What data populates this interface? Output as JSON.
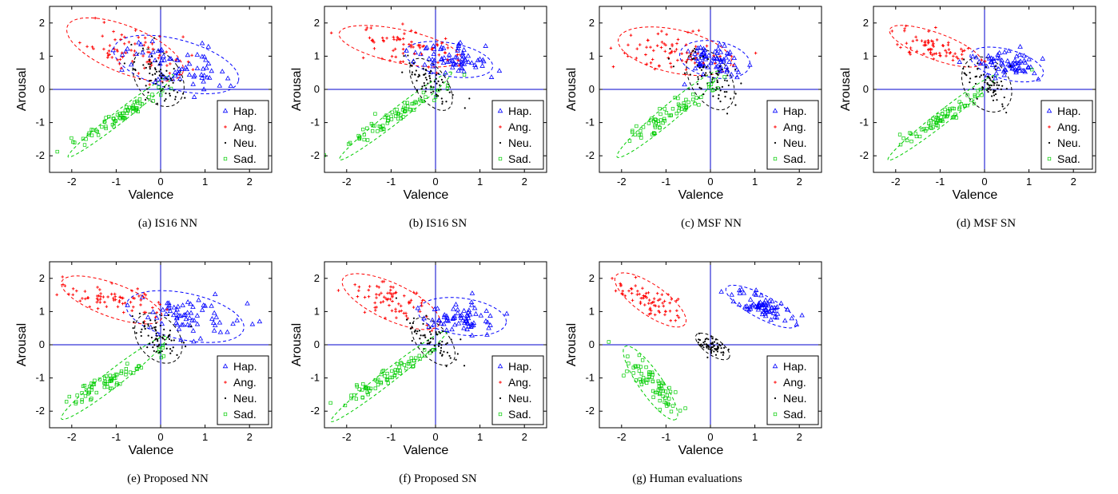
{
  "figure": {
    "colors": {
      "hap": "#0000ff",
      "ang": "#ff0000",
      "neu": "#000000",
      "sad": "#00cc00",
      "axis": "#0000cc"
    }
  },
  "chart_data": [
    {
      "type": "scatter",
      "caption": "(a)  IS16 NN",
      "xlabel": "Valence",
      "ylabel": "Arousal",
      "xlim": [
        -2.5,
        2.5
      ],
      "ylim": [
        -2.5,
        2.5
      ],
      "xticks": [
        "-2",
        "-1",
        "0",
        "1",
        "2"
      ],
      "yticks": [
        "-2",
        "-1",
        "0",
        "1",
        "2"
      ],
      "grid": false,
      "legend_position": "bottom-right",
      "series": [
        {
          "name": "Hap.",
          "marker": "triangle",
          "color": "#0000ff",
          "center": [
            0.3,
            0.85
          ],
          "spread": [
            0.55,
            0.45
          ],
          "ellipse": {
            "cx": 0.35,
            "cy": 0.75,
            "rx": 1.45,
            "ry": 0.75,
            "angle": -15
          }
        },
        {
          "name": "Ang.",
          "marker": "plus",
          "color": "#ff0000",
          "center": [
            -0.8,
            1.3
          ],
          "spread": [
            0.6,
            0.4
          ],
          "ellipse": {
            "cx": -0.8,
            "cy": 1.2,
            "rx": 1.4,
            "ry": 0.7,
            "angle": -22
          }
        },
        {
          "name": "Neu.",
          "marker": "dot",
          "color": "#000000",
          "center": [
            0.0,
            0.15
          ],
          "spread": [
            0.25,
            0.35
          ],
          "ellipse": {
            "cx": -0.05,
            "cy": 0.35,
            "rx": 0.5,
            "ry": 0.95,
            "angle": 35
          }
        },
        {
          "name": "Sad.",
          "marker": "square",
          "color": "#00cc00",
          "center": [
            -1.0,
            -0.9
          ],
          "spread": [
            0.5,
            0.45
          ],
          "ellipse": {
            "cx": -0.9,
            "cy": -0.8,
            "rx": 1.5,
            "ry": 0.18,
            "angle": 38
          }
        }
      ]
    },
    {
      "type": "scatter",
      "caption": "(b)  IS16 SN",
      "xlabel": "Valence",
      "ylabel": "Arousal",
      "xlim": [
        -2.5,
        2.5
      ],
      "ylim": [
        -2.5,
        2.5
      ],
      "xticks": [
        "-2",
        "-1",
        "0",
        "1",
        "2"
      ],
      "yticks": [
        "-2",
        "-1",
        "0",
        "1",
        "2"
      ],
      "grid": false,
      "legend_position": "bottom-right",
      "series": [
        {
          "name": "Hap.",
          "marker": "triangle",
          "color": "#0000ff",
          "center": [
            0.35,
            0.95
          ],
          "spread": [
            0.4,
            0.3
          ],
          "ellipse": {
            "cx": 0.3,
            "cy": 0.9,
            "rx": 1.0,
            "ry": 0.5,
            "angle": -10
          }
        },
        {
          "name": "Ang.",
          "marker": "plus",
          "color": "#ff0000",
          "center": [
            -0.8,
            1.3
          ],
          "spread": [
            0.6,
            0.25
          ],
          "ellipse": {
            "cx": -0.8,
            "cy": 1.3,
            "rx": 1.4,
            "ry": 0.5,
            "angle": -12
          }
        },
        {
          "name": "Neu.",
          "marker": "dot",
          "color": "#000000",
          "center": [
            -0.15,
            0.0
          ],
          "spread": [
            0.2,
            0.3
          ],
          "ellipse": {
            "cx": -0.1,
            "cy": 0.15,
            "rx": 0.35,
            "ry": 0.9,
            "angle": 35
          }
        },
        {
          "name": "Sad.",
          "marker": "square",
          "color": "#00cc00",
          "center": [
            -0.9,
            -0.8
          ],
          "spread": [
            0.55,
            0.45
          ],
          "ellipse": {
            "cx": -0.9,
            "cy": -0.8,
            "rx": 1.6,
            "ry": 0.2,
            "angle": 38
          }
        }
      ]
    },
    {
      "type": "scatter",
      "caption": "(c)  MSF NN",
      "xlabel": "Valence",
      "ylabel": "Arousal",
      "xlim": [
        -2.5,
        2.5
      ],
      "ylim": [
        -2.5,
        2.5
      ],
      "xticks": [
        "-2",
        "-1",
        "0",
        "1",
        "2"
      ],
      "yticks": [
        "-2",
        "-1",
        "0",
        "1",
        "2"
      ],
      "grid": false,
      "legend_position": "bottom-right",
      "series": [
        {
          "name": "Hap.",
          "marker": "triangle",
          "color": "#0000ff",
          "center": [
            0.1,
            1.0
          ],
          "spread": [
            0.3,
            0.3
          ],
          "ellipse": {
            "cx": 0.1,
            "cy": 0.9,
            "rx": 0.8,
            "ry": 0.55,
            "angle": -10
          }
        },
        {
          "name": "Ang.",
          "marker": "plus",
          "color": "#ff0000",
          "center": [
            -0.9,
            1.2
          ],
          "spread": [
            0.6,
            0.3
          ],
          "ellipse": {
            "cx": -0.8,
            "cy": 1.15,
            "rx": 1.3,
            "ry": 0.65,
            "angle": -12
          }
        },
        {
          "name": "Neu.",
          "marker": "dot",
          "color": "#000000",
          "center": [
            0.15,
            0.4
          ],
          "spread": [
            0.3,
            0.35
          ],
          "ellipse": {
            "cx": 0.0,
            "cy": 0.3,
            "rx": 0.45,
            "ry": 1.0,
            "angle": 30
          }
        },
        {
          "name": "Sad.",
          "marker": "square",
          "color": "#00cc00",
          "center": [
            -1.0,
            -0.8
          ],
          "spread": [
            0.5,
            0.5
          ],
          "ellipse": {
            "cx": -0.95,
            "cy": -0.75,
            "rx": 1.5,
            "ry": 0.25,
            "angle": 40
          }
        }
      ]
    },
    {
      "type": "scatter",
      "caption": "(d)  MSF SN",
      "xlabel": "Valence",
      "ylabel": "Arousal",
      "xlim": [
        -2.5,
        2.5
      ],
      "ylim": [
        -2.5,
        2.5
      ],
      "xticks": [
        "-2",
        "-1",
        "0",
        "1",
        "2"
      ],
      "yticks": [
        "-2",
        "-1",
        "0",
        "1",
        "2"
      ],
      "grid": false,
      "legend_position": "bottom-right",
      "series": [
        {
          "name": "Hap.",
          "marker": "triangle",
          "color": "#0000ff",
          "center": [
            0.5,
            0.8
          ],
          "spread": [
            0.4,
            0.25
          ],
          "ellipse": {
            "cx": 0.5,
            "cy": 0.75,
            "rx": 0.85,
            "ry": 0.45,
            "angle": -15
          }
        },
        {
          "name": "Ang.",
          "marker": "plus",
          "color": "#ff0000",
          "center": [
            -1.2,
            1.35
          ],
          "spread": [
            0.5,
            0.25
          ],
          "ellipse": {
            "cx": -1.1,
            "cy": 1.3,
            "rx": 1.1,
            "ry": 0.4,
            "angle": -20
          }
        },
        {
          "name": "Neu.",
          "marker": "dot",
          "color": "#000000",
          "center": [
            0.0,
            0.2
          ],
          "spread": [
            0.3,
            0.3
          ],
          "ellipse": {
            "cx": 0.05,
            "cy": 0.15,
            "rx": 0.5,
            "ry": 0.9,
            "angle": 35
          }
        },
        {
          "name": "Sad.",
          "marker": "square",
          "color": "#00cc00",
          "center": [
            -1.0,
            -0.9
          ],
          "spread": [
            0.5,
            0.45
          ],
          "ellipse": {
            "cx": -0.95,
            "cy": -0.85,
            "rx": 1.55,
            "ry": 0.2,
            "angle": 38
          }
        }
      ]
    },
    {
      "type": "scatter",
      "caption": "(e)  Proposed NN",
      "xlabel": "Valence",
      "ylabel": "Arousal",
      "xlim": [
        -2.5,
        2.5
      ],
      "ylim": [
        -2.5,
        2.5
      ],
      "xticks": [
        "-2",
        "-1",
        "0",
        "1",
        "2"
      ],
      "yticks": [
        "-2",
        "-1",
        "0",
        "1",
        "2"
      ],
      "grid": false,
      "legend_position": "bottom-right",
      "series": [
        {
          "name": "Hap.",
          "marker": "triangle",
          "color": "#0000ff",
          "center": [
            0.6,
            1.0
          ],
          "spread": [
            0.6,
            0.35
          ],
          "ellipse": {
            "cx": 0.55,
            "cy": 0.85,
            "rx": 1.35,
            "ry": 0.7,
            "angle": -12
          }
        },
        {
          "name": "Ang.",
          "marker": "plus",
          "color": "#ff0000",
          "center": [
            -1.1,
            1.4
          ],
          "spread": [
            0.5,
            0.35
          ],
          "ellipse": {
            "cx": -1.1,
            "cy": 1.35,
            "rx": 1.2,
            "ry": 0.5,
            "angle": -20
          }
        },
        {
          "name": "Neu.",
          "marker": "dot",
          "color": "#000000",
          "center": [
            0.0,
            0.2
          ],
          "spread": [
            0.25,
            0.35
          ],
          "ellipse": {
            "cx": -0.05,
            "cy": 0.2,
            "rx": 0.45,
            "ry": 0.85,
            "angle": 40
          }
        },
        {
          "name": "Sad.",
          "marker": "square",
          "color": "#00cc00",
          "center": [
            -1.1,
            -1.0
          ],
          "spread": [
            0.45,
            0.4
          ],
          "ellipse": {
            "cx": -1.05,
            "cy": -1.0,
            "rx": 1.5,
            "ry": 0.25,
            "angle": 38
          }
        }
      ]
    },
    {
      "type": "scatter",
      "caption": "(f)  Proposed SN",
      "xlabel": "Valence",
      "ylabel": "Arousal",
      "xlim": [
        -2.5,
        2.5
      ],
      "ylim": [
        -2.5,
        2.5
      ],
      "xticks": [
        "-2",
        "-1",
        "0",
        "1",
        "2"
      ],
      "yticks": [
        "-2",
        "-1",
        "0",
        "1",
        "2"
      ],
      "grid": false,
      "legend_position": "bottom-right",
      "series": [
        {
          "name": "Hap.",
          "marker": "triangle",
          "color": "#0000ff",
          "center": [
            0.6,
            0.9
          ],
          "spread": [
            0.5,
            0.3
          ],
          "ellipse": {
            "cx": 0.6,
            "cy": 0.85,
            "rx": 1.0,
            "ry": 0.55,
            "angle": -8
          }
        },
        {
          "name": "Ang.",
          "marker": "plus",
          "color": "#ff0000",
          "center": [
            -1.0,
            1.35
          ],
          "spread": [
            0.5,
            0.35
          ],
          "ellipse": {
            "cx": -1.0,
            "cy": 1.3,
            "rx": 1.2,
            "ry": 0.55,
            "angle": -25
          }
        },
        {
          "name": "Neu.",
          "marker": "dot",
          "color": "#000000",
          "center": [
            0.0,
            0.05
          ],
          "spread": [
            0.2,
            0.3
          ],
          "ellipse": {
            "cx": -0.05,
            "cy": 0.1,
            "rx": 0.35,
            "ry": 0.85,
            "angle": 40
          }
        },
        {
          "name": "Sad.",
          "marker": "square",
          "color": "#00cc00",
          "center": [
            -1.1,
            -1.0
          ],
          "spread": [
            0.5,
            0.45
          ],
          "ellipse": {
            "cx": -1.05,
            "cy": -0.95,
            "rx": 1.65,
            "ry": 0.2,
            "angle": 38
          }
        }
      ]
    },
    {
      "type": "scatter",
      "caption": "(g)  Human evaluations",
      "xlabel": "Valence",
      "ylabel": "Arousal",
      "xlim": [
        -2.5,
        2.5
      ],
      "ylim": [
        -2.5,
        2.5
      ],
      "xticks": [
        "-2",
        "-1",
        "0",
        "1",
        "2"
      ],
      "yticks": [
        "-2",
        "-1",
        "0",
        "1",
        "2"
      ],
      "grid": false,
      "legend_position": "bottom-right",
      "series": [
        {
          "name": "Hap.",
          "marker": "triangle",
          "color": "#0000ff",
          "center": [
            1.15,
            1.2
          ],
          "spread": [
            0.4,
            0.3
          ],
          "ellipse": {
            "cx": 1.15,
            "cy": 1.15,
            "rx": 0.9,
            "ry": 0.35,
            "angle": -28
          }
        },
        {
          "name": "Ang.",
          "marker": "plus",
          "color": "#ff0000",
          "center": [
            -1.4,
            1.4
          ],
          "spread": [
            0.35,
            0.35
          ],
          "ellipse": {
            "cx": -1.35,
            "cy": 1.35,
            "rx": 0.95,
            "ry": 0.45,
            "angle": -35
          }
        },
        {
          "name": "Neu.",
          "marker": "dot",
          "color": "#000000",
          "center": [
            0.05,
            -0.05
          ],
          "spread": [
            0.2,
            0.2
          ],
          "ellipse": {
            "cx": 0.05,
            "cy": -0.05,
            "rx": 0.45,
            "ry": 0.25,
            "angle": -35
          }
        },
        {
          "name": "Sad.",
          "marker": "square",
          "color": "#00cc00",
          "center": [
            -1.35,
            -1.15
          ],
          "spread": [
            0.3,
            0.35
          ],
          "ellipse": {
            "cx": -1.35,
            "cy": -1.15,
            "rx": 1.0,
            "ry": 0.35,
            "angle": -55
          }
        }
      ]
    }
  ]
}
